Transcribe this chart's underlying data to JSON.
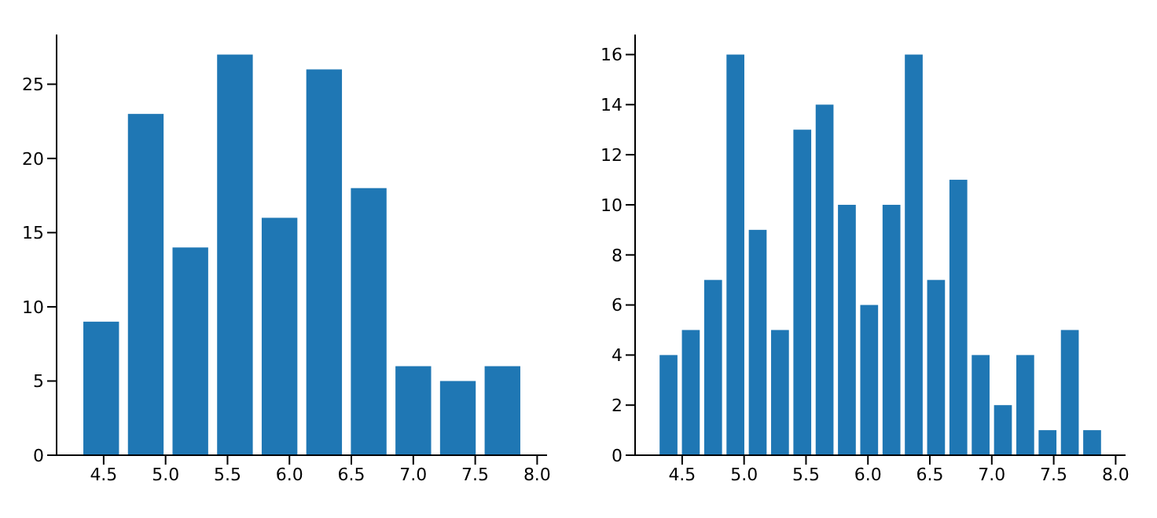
{
  "chart_data": [
    {
      "type": "histogram",
      "bins": [
        4.3,
        4.66,
        5.02,
        5.38,
        5.74,
        6.1,
        6.46,
        6.82,
        7.18,
        7.54,
        7.9
      ],
      "values": [
        9,
        23,
        14,
        27,
        16,
        26,
        18,
        6,
        5,
        6
      ],
      "color": "#1f77b4",
      "xlim": [
        4.12,
        8.08
      ],
      "xticks": [
        {
          "value": 4.5,
          "label": "4.5"
        },
        {
          "value": 5,
          "label": "5.0"
        },
        {
          "value": 5.5,
          "label": "5.5"
        },
        {
          "value": 6,
          "label": "6.0"
        },
        {
          "value": 6.5,
          "label": "6.5"
        },
        {
          "value": 7,
          "label": "7.0"
        },
        {
          "value": 7.5,
          "label": "7.5"
        },
        {
          "value": 8,
          "label": "8.0"
        }
      ],
      "ylim": [
        0,
        28.35
      ],
      "yticks": [
        0,
        5,
        10,
        15,
        20,
        25
      ],
      "grid": false
    },
    {
      "type": "histogram",
      "bins": [
        4.3,
        4.48,
        4.66,
        4.84,
        5.02,
        5.2,
        5.38,
        5.56,
        5.74,
        5.92,
        6.1,
        6.28,
        6.46,
        6.64,
        6.82,
        7,
        7.18,
        7.36,
        7.54,
        7.72,
        7.9
      ],
      "values": [
        4,
        5,
        7,
        16,
        9,
        5,
        13,
        14,
        10,
        6,
        10,
        16,
        7,
        11,
        4,
        2,
        4,
        1,
        5,
        1
      ],
      "color": "#1f77b4",
      "xlim": [
        4.12,
        8.08
      ],
      "xticks": [
        {
          "value": 4.5,
          "label": "4.5"
        },
        {
          "value": 5,
          "label": "5.0"
        },
        {
          "value": 5.5,
          "label": "5.5"
        },
        {
          "value": 6,
          "label": "6.0"
        },
        {
          "value": 6.5,
          "label": "6.5"
        },
        {
          "value": 7,
          "label": "7.0"
        },
        {
          "value": 7.5,
          "label": "7.5"
        },
        {
          "value": 8,
          "label": "8.0"
        }
      ],
      "ylim": [
        0,
        16.8
      ],
      "yticks": [
        0,
        2,
        4,
        6,
        8,
        10,
        12,
        14,
        16
      ],
      "grid": false
    }
  ]
}
